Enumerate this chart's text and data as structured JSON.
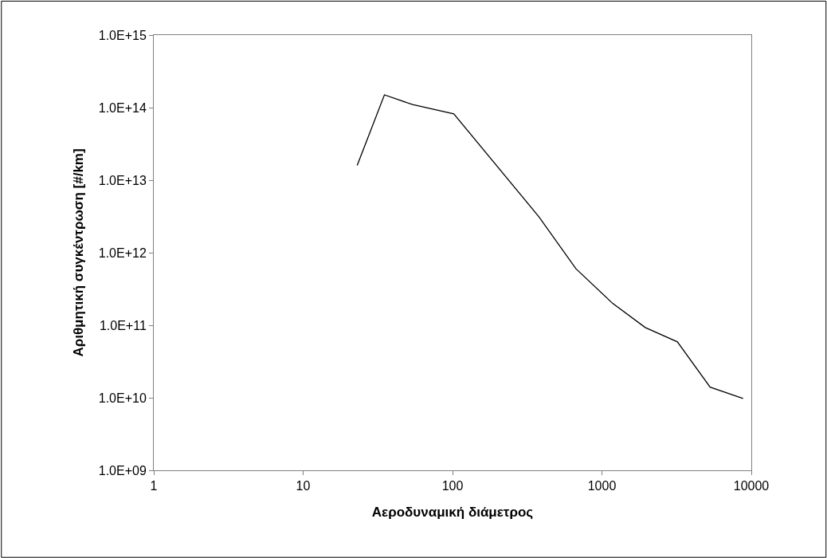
{
  "chart_data": {
    "type": "line",
    "xlabel": "Αεροδυναμική διάμετρος",
    "ylabel": "Αριθμητική συγκέντρωση [#/km]",
    "log": "xy",
    "grid": false,
    "legend": false,
    "marker": "none",
    "line_style": "solid",
    "x": [
      23,
      35,
      54,
      102,
      380,
      670,
      1180,
      1950,
      3200,
      5300,
      8800
    ],
    "series": [
      {
        "color": "#000000",
        "values": [
          16000000000000.0,
          150000000000000.0,
          110000000000000.0,
          82000000000000.0,
          3100000000000.0,
          600000000000.0,
          200000000000.0,
          93000000000.0,
          59000000000.0,
          14000000000.0,
          9800000000.0
        ]
      }
    ],
    "xlim": [
      1,
      10000
    ],
    "xticks": [
      1,
      10,
      100,
      1000,
      10000
    ],
    "ylim": [
      1000000000.0,
      1000000000000000.0
    ],
    "yticks": [
      {
        "value": 1000000000.0,
        "label": "1.0E+09"
      },
      {
        "value": 10000000000.0,
        "label": "1.0E+10"
      },
      {
        "value": 100000000000.0,
        "label": "1.0E+11"
      },
      {
        "value": 1000000000000.0,
        "label": "1.0E+12"
      },
      {
        "value": 10000000000000.0,
        "label": "1.0E+13"
      },
      {
        "value": 100000000000000.0,
        "label": "1.0E+14"
      },
      {
        "value": 1000000000000000.0,
        "label": "1.0E+15"
      }
    ]
  }
}
